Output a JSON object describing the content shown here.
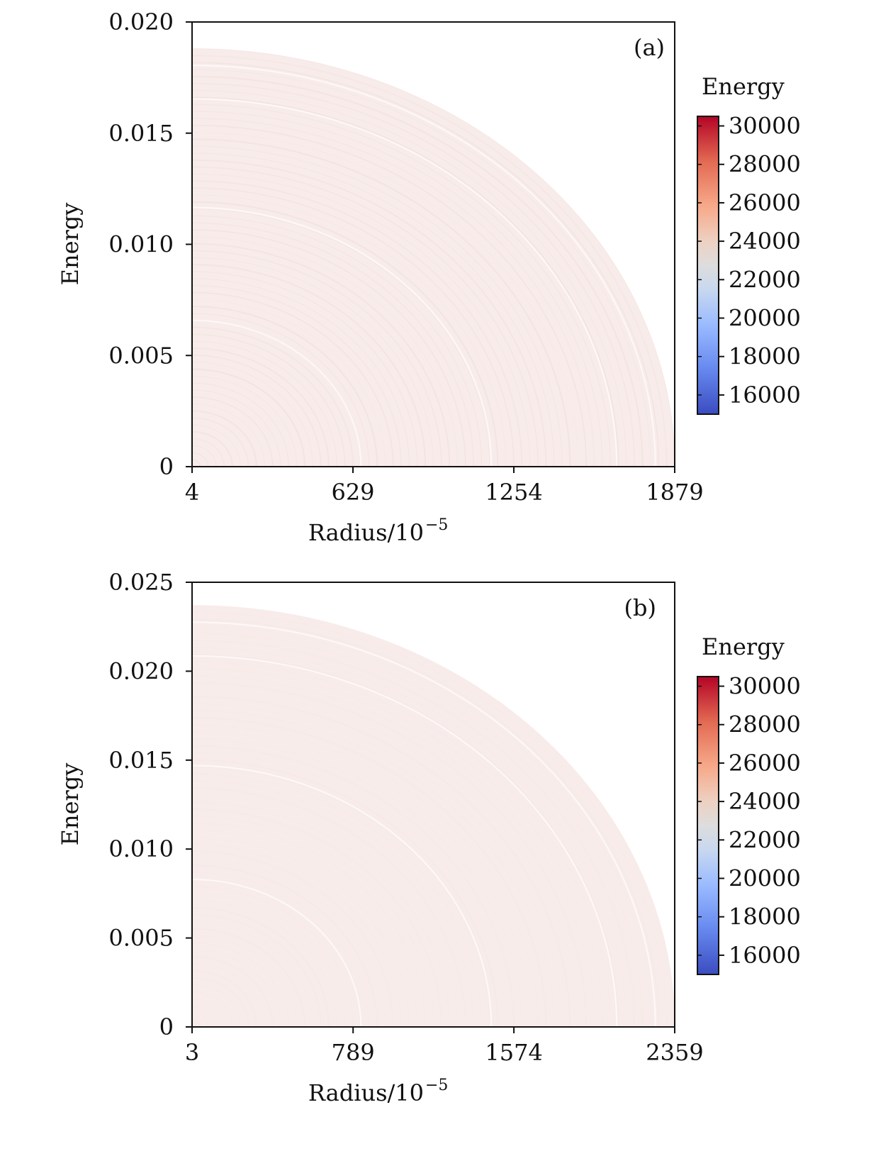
{
  "chart_data": [
    {
      "type": "heatmap",
      "panel_label": "(a)",
      "xlabel": "Radius/10",
      "xlabel_exponent": "−5",
      "ylabel": "Energy",
      "x_ticks": [
        "4",
        "629",
        "1254",
        "1879"
      ],
      "xlim": [
        4,
        1879
      ],
      "y_ticks": [
        "0",
        "0.005",
        "0.010",
        "0.015",
        "0.020"
      ],
      "ylim": [
        0,
        0.02
      ],
      "quarter_circle_extent": {
        "max_x": 1879,
        "max_y": 0.0188
      },
      "fill_value_approx": 22800,
      "colorbar": {
        "title": "Energy",
        "range": [
          15000,
          30500
        ],
        "ticks": [
          "16000",
          "18000",
          "20000",
          "22000",
          "24000",
          "26000",
          "28000",
          "30000"
        ],
        "colormap": "coolwarm",
        "low_color": "#3b4cc0",
        "mid_color": "#dddddd",
        "high_color": "#b40426"
      },
      "ring_color": "#f0dedb"
    },
    {
      "type": "heatmap",
      "panel_label": "(b)",
      "xlabel": "Radius/10",
      "xlabel_exponent": "−5",
      "ylabel": "Energy",
      "x_ticks": [
        "3",
        "789",
        "1574",
        "2359"
      ],
      "xlim": [
        3,
        2359
      ],
      "y_ticks": [
        "0",
        "0.005",
        "0.010",
        "0.015",
        "0.020",
        "0.025"
      ],
      "ylim": [
        0,
        0.025
      ],
      "quarter_circle_extent": {
        "max_x": 2359,
        "max_y": 0.0237
      },
      "fill_value_approx": 22700,
      "colorbar": {
        "title": "Energy",
        "range": [
          15000,
          30500
        ],
        "ticks": [
          "16000",
          "18000",
          "20000",
          "22000",
          "24000",
          "26000",
          "28000",
          "30000"
        ],
        "colormap": "coolwarm",
        "low_color": "#3b4cc0",
        "mid_color": "#dddddd",
        "high_color": "#b40426"
      },
      "ring_color": "#f5e8e6"
    }
  ]
}
